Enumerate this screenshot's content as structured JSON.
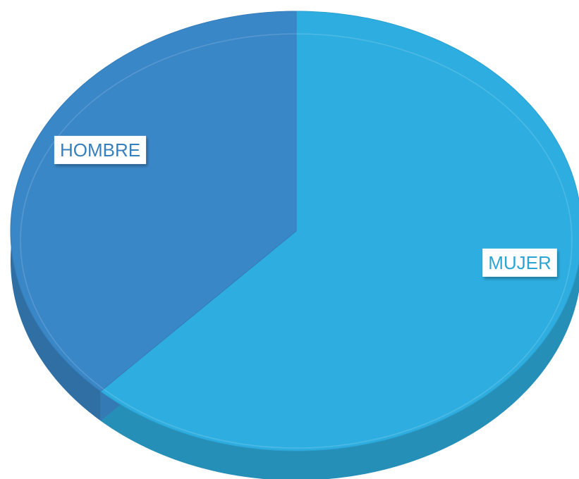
{
  "chart_data": {
    "type": "pie",
    "categories": [
      "MUJER",
      "HOMBRE"
    ],
    "values": [
      62,
      38
    ],
    "colors": [
      "#2eaee0",
      "#3a87c8"
    ]
  }
}
